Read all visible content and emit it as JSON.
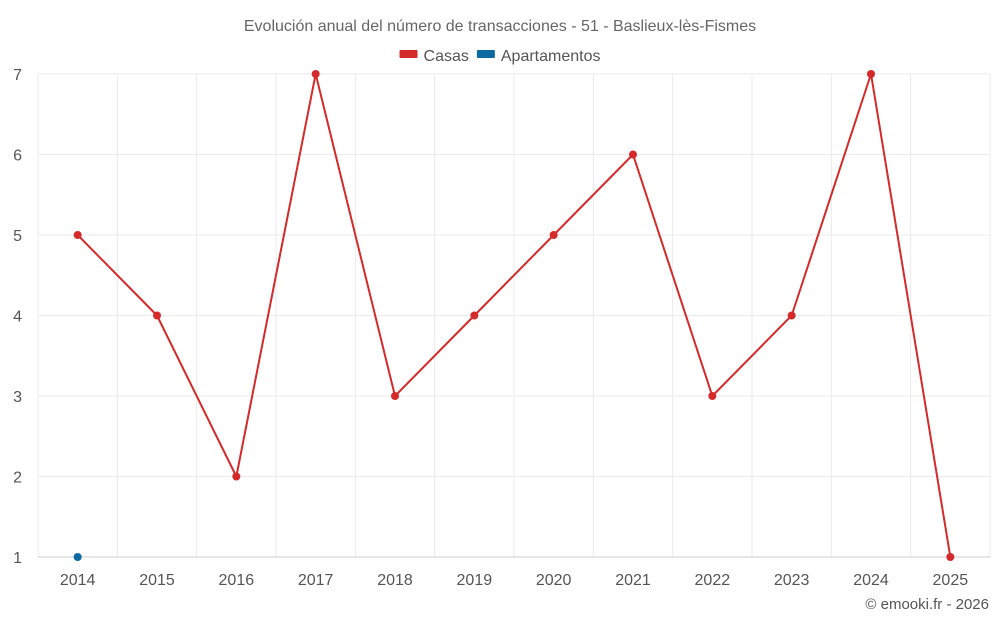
{
  "chart_data": {
    "type": "line",
    "title": "Evolución anual del número de transacciones - 51 - Baslieux-lès-Fismes",
    "categories": [
      "2014",
      "2015",
      "2016",
      "2017",
      "2018",
      "2019",
      "2020",
      "2021",
      "2022",
      "2023",
      "2024",
      "2025"
    ],
    "series": [
      {
        "name": "Casas",
        "color": "#d42a2a",
        "values": [
          5,
          4,
          2,
          7,
          3,
          4,
          5,
          6,
          3,
          4,
          7,
          1
        ]
      },
      {
        "name": "Apartamentos",
        "color": "#0a6aa1",
        "values": [
          1,
          null,
          null,
          null,
          null,
          null,
          null,
          null,
          null,
          null,
          null,
          null
        ]
      }
    ],
    "yticks": [
      "1",
      "2",
      "3",
      "4",
      "5",
      "6",
      "7"
    ],
    "ylim": [
      1,
      7
    ],
    "grid": true,
    "legend_position": "top-center"
  },
  "credit": "© emooki.fr - 2026"
}
